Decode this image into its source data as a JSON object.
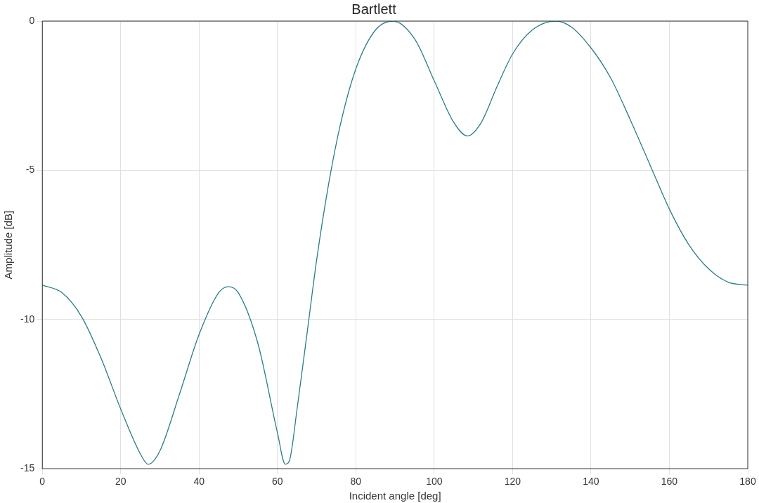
{
  "chart_data": {
    "type": "line",
    "title": "Bartlett",
    "xlabel": "Incident angle [deg]",
    "ylabel": "Amplitude [dB]",
    "xlim": [
      0,
      180
    ],
    "xticks": [
      0,
      20,
      40,
      60,
      80,
      100,
      120,
      140,
      160,
      180
    ],
    "ylim": [
      -15,
      0
    ],
    "yticks": [
      -15,
      -10,
      -5,
      0
    ],
    "grid": true,
    "legend": false,
    "marker": "none",
    "line_style": "solid",
    "series": [
      {
        "color": "#2a7d86",
        "x": [
          0,
          5,
          10,
          15,
          20,
          25,
          27,
          30,
          35,
          40,
          45,
          47.5,
          50,
          55,
          60,
          62,
          63,
          65,
          68,
          70,
          73,
          76,
          80,
          85,
          89.5,
          95,
          100,
          105,
          108.5,
          112,
          116,
          120,
          125,
          131,
          135,
          140,
          145,
          150,
          155,
          160,
          165,
          170,
          175,
          180
        ],
        "values": [
          -8.85,
          -9.1,
          -9.9,
          -11.3,
          -13.0,
          -14.5,
          -14.85,
          -14.4,
          -12.5,
          -10.5,
          -9.1,
          -8.9,
          -9.1,
          -10.8,
          -13.8,
          -14.85,
          -14.75,
          -13.0,
          -10.0,
          -8.0,
          -5.5,
          -3.5,
          -1.6,
          -0.3,
          0,
          -0.6,
          -2.0,
          -3.4,
          -3.85,
          -3.4,
          -2.2,
          -1.1,
          -0.3,
          0,
          -0.2,
          -0.9,
          -1.9,
          -3.3,
          -4.8,
          -6.3,
          -7.5,
          -8.3,
          -8.75,
          -8.85
        ]
      }
    ]
  }
}
